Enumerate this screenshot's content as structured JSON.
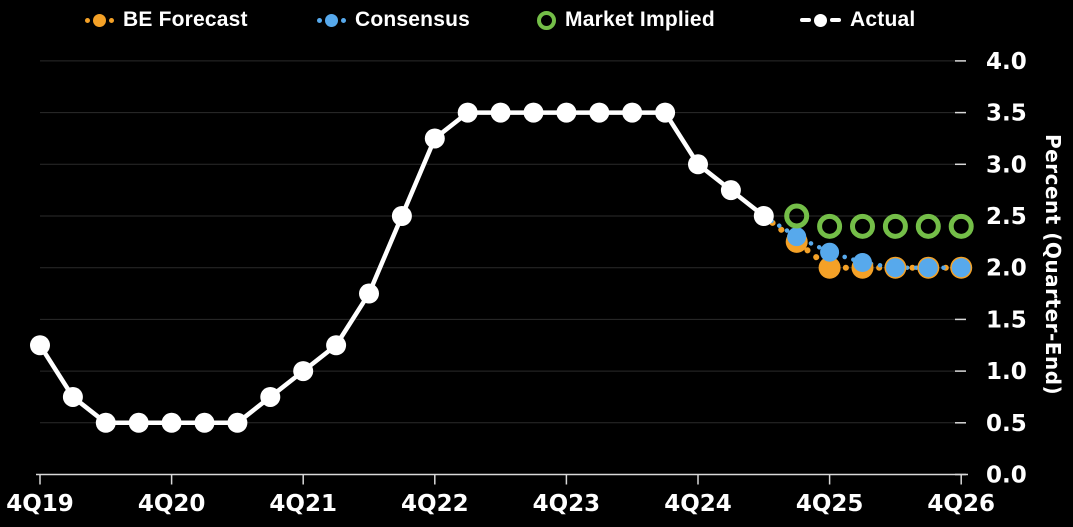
{
  "legend": [
    {
      "label": "BE Forecast",
      "color": "#F4A127",
      "marker": "dotted-circle"
    },
    {
      "label": "Consensus",
      "color": "#57A9EC",
      "marker": "dotted-circle"
    },
    {
      "label": "Market Implied",
      "color": "#74BE48",
      "marker": "open-circle"
    },
    {
      "label": "Actual",
      "color": "#FFFFFF",
      "marker": "dash-circle"
    }
  ],
  "chart_data": {
    "type": "line",
    "ylabel": "Percent (Quarter-End)",
    "ylim": [
      0.0,
      4.0
    ],
    "grid": "horizontal",
    "legend_position": "top",
    "x_unit": "quarter",
    "x_start": "4Q19",
    "x_end": "4Q26",
    "x_tick_labels": [
      "4Q19",
      "4Q20",
      "4Q21",
      "4Q22",
      "4Q23",
      "4Q24",
      "4Q25",
      "4Q26"
    ],
    "y_tick_labels": [
      "0.0",
      "0.5",
      "1.0",
      "1.5",
      "2.0",
      "2.5",
      "3.0",
      "3.5",
      "4.0"
    ],
    "colors": {
      "grid": "#2B2B2B",
      "axis": "#D9D9D9",
      "text": "#FFFFFF",
      "background": "#000000"
    },
    "series": [
      {
        "name": "Actual",
        "color": "#FFFFFF",
        "line": "solid",
        "marker": "filled",
        "start_index": 0,
        "start_quarter": "4Q19",
        "values": [
          1.25,
          0.75,
          0.5,
          0.5,
          0.5,
          0.5,
          0.5,
          0.75,
          1.0,
          1.25,
          1.75,
          2.5,
          3.25,
          3.5,
          3.5,
          3.5,
          3.5,
          3.5,
          3.5,
          3.5,
          3.0,
          2.75,
          2.5
        ]
      },
      {
        "name": "BE Forecast",
        "color": "#F4A127",
        "line": "dotted",
        "marker": "filled",
        "connects_from_actual": true,
        "start_index": 23,
        "start_quarter": "3Q25",
        "values": [
          2.25,
          2.0,
          2.0,
          2.0,
          2.0,
          2.0
        ]
      },
      {
        "name": "Consensus",
        "color": "#57A9EC",
        "line": "dotted",
        "marker": "filled",
        "connects_from_actual": true,
        "start_index": 23,
        "start_quarter": "3Q25",
        "values": [
          2.3,
          2.15,
          2.05,
          2.0,
          2.0,
          2.0
        ]
      },
      {
        "name": "Market Implied",
        "color": "#74BE48",
        "line": "none",
        "marker": "open",
        "start_index": 23,
        "start_quarter": "3Q25",
        "values": [
          2.5,
          2.4,
          2.4,
          2.4,
          2.4,
          2.4
        ]
      }
    ]
  }
}
